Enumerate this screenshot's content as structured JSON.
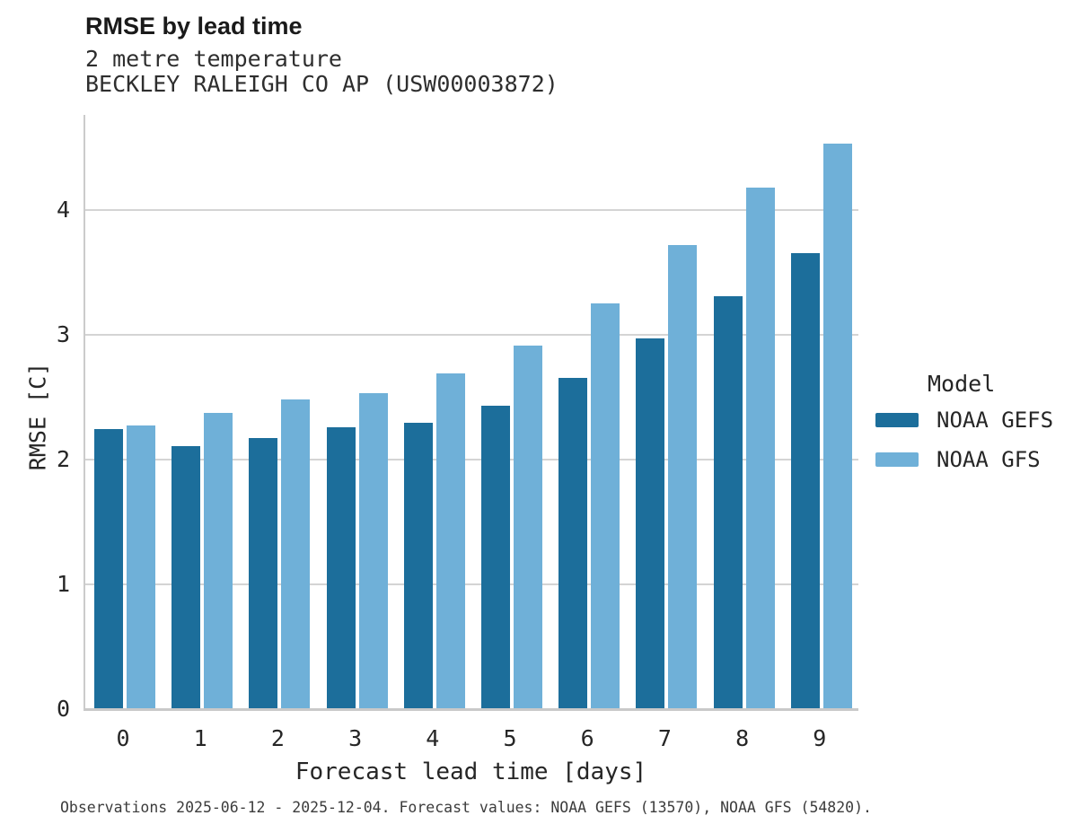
{
  "header": {
    "title": "RMSE by lead time",
    "subtitle1": "2 metre temperature",
    "subtitle2": "BECKLEY RALEIGH CO AP (USW00003872)"
  },
  "legend": {
    "title": "Model",
    "items": [
      {
        "label": "NOAA GEFS",
        "color": "#1c6e9b"
      },
      {
        "label": "NOAA GFS",
        "color": "#6fb0d8"
      }
    ]
  },
  "caption": "Observations 2025-06-12 - 2025-12-04. Forecast values: NOAA GEFS (13570), NOAA GFS (54820).",
  "colors": {
    "gefs_bar": "#1c6e9b",
    "gfs_bar": "#6fb0d8",
    "gridline": "#d4d4d4",
    "axis_spine": "#c9c9c9",
    "background": "#ffffff"
  },
  "chart_data": {
    "type": "bar",
    "title": "RMSE by lead time",
    "subtitle": [
      "2 metre temperature",
      "BECKLEY RALEIGH CO AP (USW00003872)"
    ],
    "categories": [
      "0",
      "1",
      "2",
      "3",
      "4",
      "5",
      "6",
      "7",
      "8",
      "9"
    ],
    "series": [
      {
        "name": "NOAA GEFS",
        "color": "#1c6e9b",
        "values": [
          2.22,
          2.09,
          2.15,
          2.24,
          2.27,
          2.41,
          2.63,
          2.95,
          3.29,
          3.63
        ]
      },
      {
        "name": "NOAA GFS",
        "color": "#6fb0d8",
        "values": [
          2.25,
          2.35,
          2.46,
          2.51,
          2.67,
          2.89,
          3.23,
          3.7,
          4.16,
          4.51
        ]
      }
    ],
    "xlabel": "Forecast lead time [days]",
    "ylabel": "RMSE [C]",
    "ylim": [
      0,
      4.77
    ],
    "yticks": [
      0,
      1,
      2,
      3,
      4
    ],
    "grid": "horizontal",
    "legend_title": "Model",
    "legend_position": "right"
  }
}
